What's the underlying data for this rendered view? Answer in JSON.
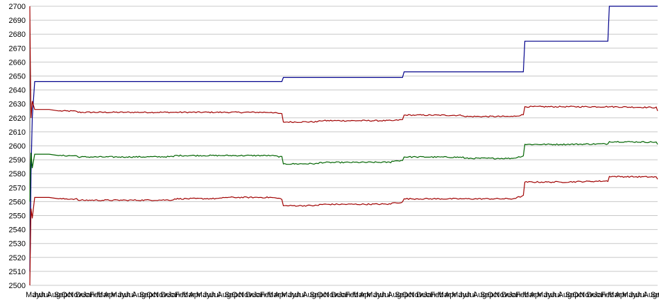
{
  "chart_data": {
    "type": "line",
    "title": "",
    "xlabel": "",
    "ylabel": "",
    "ylim": [
      2500,
      2700
    ],
    "yticks": [
      2500,
      2510,
      2520,
      2530,
      2540,
      2550,
      2560,
      2570,
      2580,
      2590,
      2600,
      2610,
      2620,
      2630,
      2640,
      2650,
      2660,
      2670,
      2680,
      2690,
      2700
    ],
    "grid": true,
    "legend": "none",
    "x_tick_text_repeat": "MayJunJulAugSepOctNovDecJanFebMarApr",
    "x_tick_count": 90,
    "x": [
      0,
      0.2,
      0.5,
      1,
      2,
      3,
      4,
      5,
      8,
      12,
      20,
      40,
      60,
      80,
      100,
      105,
      120,
      150,
      155,
      160,
      180,
      200,
      205,
      220,
      240,
      260
    ],
    "series": [
      {
        "name": "",
        "color": "#00008B",
        "values": [
          2510,
          2530,
          2580,
          2620,
          2646,
          2646,
          2646,
          2646,
          2646,
          2646,
          2646,
          2646,
          2646,
          2646,
          2646,
          2649,
          2649,
          2649,
          2653,
          2653,
          2653,
          2653,
          2675,
          2675,
          2700,
          2700
        ]
      },
      {
        "name": "",
        "color": "#A00000",
        "values": [
          2700,
          2660,
          2620,
          2632,
          2626,
          2626,
          2626,
          2626,
          2626,
          2625,
          2624,
          2624,
          2624,
          2624,
          2624,
          2617,
          2618,
          2618,
          2622,
          2622,
          2621,
          2621,
          2628,
          2628,
          2628,
          2625
        ]
      },
      {
        "name": "",
        "color": "#006400",
        "values": [
          2560,
          2580,
          2595,
          2584,
          2594,
          2594,
          2594,
          2594,
          2594,
          2593,
          2592,
          2592,
          2593,
          2593,
          2593,
          2587,
          2588,
          2589,
          2592,
          2592,
          2591,
          2591,
          2601,
          2601,
          2603,
          2601
        ]
      },
      {
        "name": "",
        "color": "#A00000",
        "values": [
          2500,
          2525,
          2555,
          2548,
          2563,
          2563,
          2563,
          2563,
          2563,
          2562,
          2561,
          2561,
          2562,
          2563,
          2563,
          2557,
          2558,
          2559,
          2562,
          2562,
          2562,
          2562,
          2574,
          2574,
          2578,
          2576
        ]
      }
    ]
  }
}
